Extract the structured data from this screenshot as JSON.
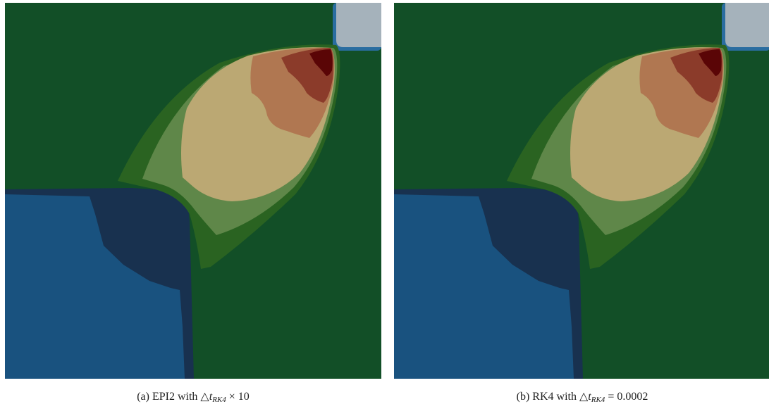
{
  "colors": {
    "background_green": "#124f27",
    "mid_green": "#2a6321",
    "light_green": "#5f8749",
    "cream": "#bba873",
    "tan": "#b07751",
    "rust": "#8b3b2a",
    "dark_red": "#5a0506",
    "light_blue": "#19527f",
    "navy": "#18314f",
    "gray_blue": "#a5b2bb",
    "edge_blue": "#2a6da0"
  },
  "panels": [
    {
      "label": "(a)",
      "method": "EPI2",
      "connector": "with",
      "delta": "△",
      "t": "t",
      "subscript": "RK4",
      "suffix": "× 10"
    },
    {
      "label": "(b)",
      "method": "RK4",
      "connector": "with",
      "delta": "△",
      "t": "t",
      "subscript": "RK4",
      "suffix": "= 0.0002"
    }
  ]
}
